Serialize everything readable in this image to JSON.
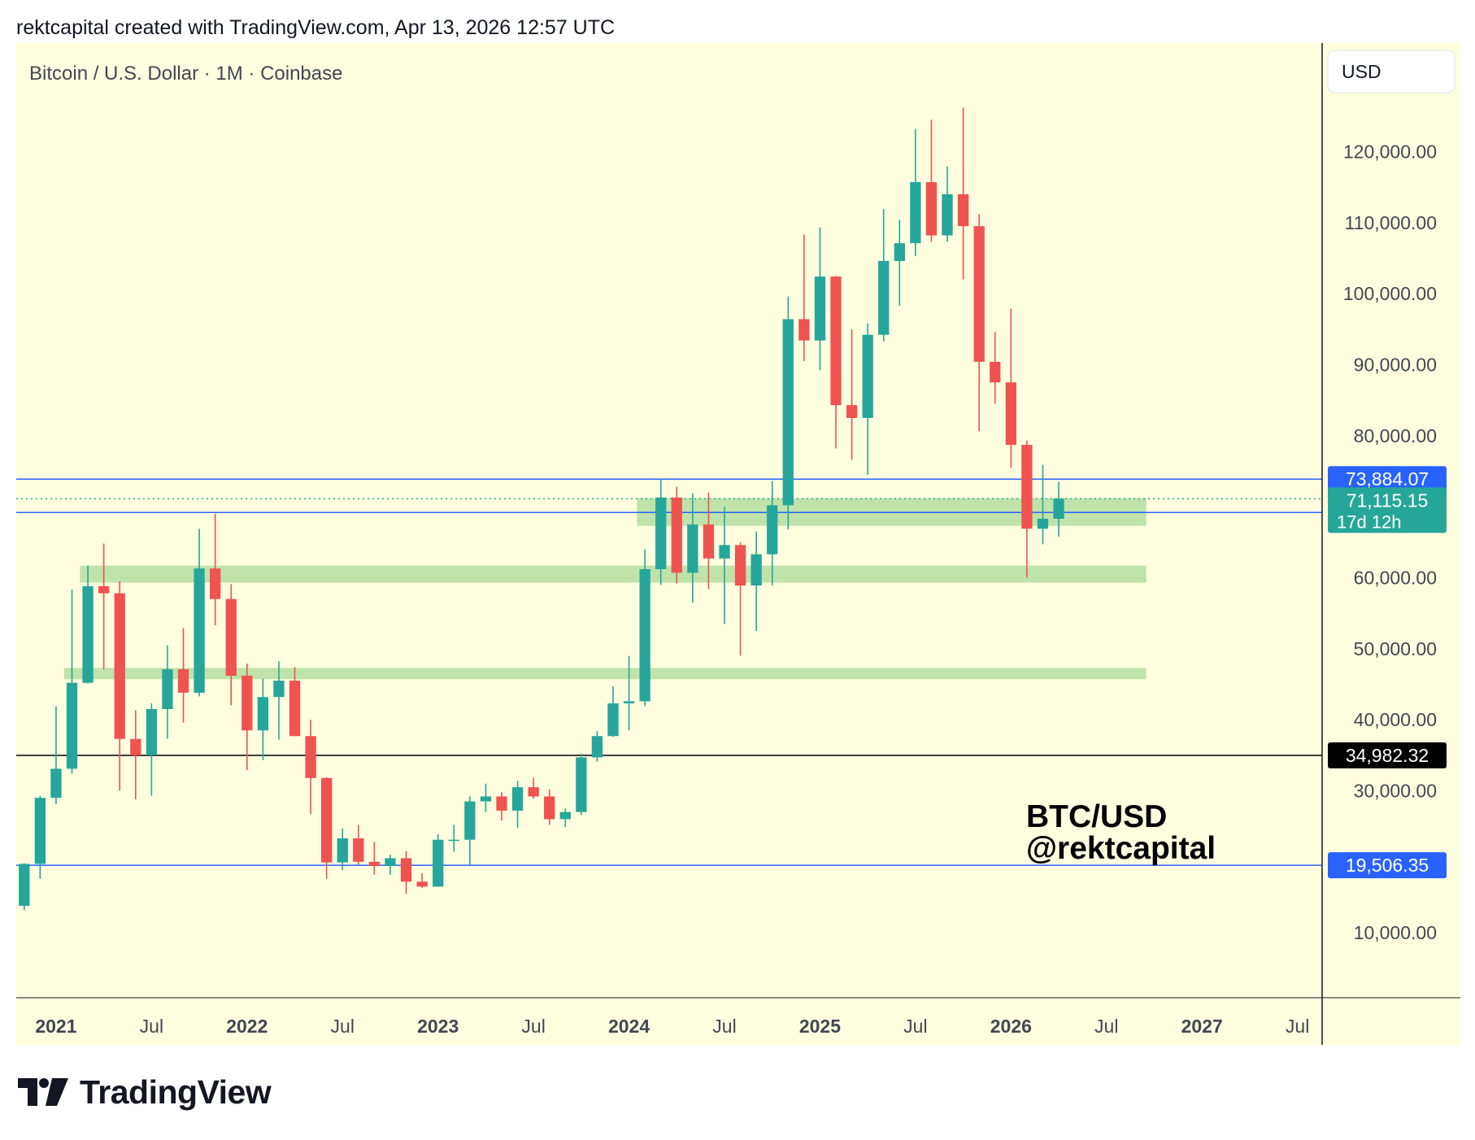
{
  "header": {
    "text": "rektcapital created with TradingView.com, Apr 13, 2026 12:57 UTC"
  },
  "footer": {
    "brand": "TradingView"
  },
  "colors": {
    "background": "#ffffe0",
    "up": "#26a69a",
    "down": "#ef5350",
    "zone": "#b8e0a4",
    "level_line": "#2962ff",
    "black_line": "#000000",
    "grid_text": "#434651"
  },
  "chart_data": {
    "type": "candlestick",
    "title": "Bitcoin / U.S. Dollar · 1M · Coinbase",
    "currency_label": "USD",
    "watermark": [
      "BTC/USD",
      "@rektcapital"
    ],
    "x_ticks": [
      {
        "label": "2021",
        "date": "2021-01",
        "bold": true
      },
      {
        "label": "Jul",
        "date": "2021-07",
        "bold": false
      },
      {
        "label": "2022",
        "date": "2022-01",
        "bold": true
      },
      {
        "label": "Jul",
        "date": "2022-07",
        "bold": false
      },
      {
        "label": "2023",
        "date": "2023-01",
        "bold": true
      },
      {
        "label": "Jul",
        "date": "2023-07",
        "bold": false
      },
      {
        "label": "2024",
        "date": "2024-01",
        "bold": true
      },
      {
        "label": "Jul",
        "date": "2024-07",
        "bold": false
      },
      {
        "label": "2025",
        "date": "2025-01",
        "bold": true
      },
      {
        "label": "Jul",
        "date": "2025-07",
        "bold": false
      },
      {
        "label": "2026",
        "date": "2026-01",
        "bold": true
      },
      {
        "label": "Jul",
        "date": "2026-07",
        "bold": false
      },
      {
        "label": "2027",
        "date": "2027-01",
        "bold": true
      },
      {
        "label": "Jul",
        "date": "2027-07",
        "bold": false
      }
    ],
    "y_ticks": [
      {
        "value": 120000,
        "label": "120,000.00"
      },
      {
        "value": 110000,
        "label": "110,000.00"
      },
      {
        "value": 100000,
        "label": "100,000.00"
      },
      {
        "value": 90000,
        "label": "90,000.00"
      },
      {
        "value": 80000,
        "label": "80,000.00"
      },
      {
        "value": 60000,
        "label": "60,000.00"
      },
      {
        "value": 50000,
        "label": "50,000.00"
      },
      {
        "value": 40000,
        "label": "40,000.00"
      },
      {
        "value": 30000,
        "label": "30,000.00"
      },
      {
        "value": 10000,
        "label": "10,000.00"
      }
    ],
    "x_range": [
      "2020-11",
      "2027-08"
    ],
    "y_range": [
      2000,
      140000
    ],
    "candles": [
      {
        "date": "2020-11",
        "o": 13800,
        "h": 19800,
        "l": 13200,
        "c": 19700
      },
      {
        "date": "2020-12",
        "o": 19700,
        "h": 29300,
        "l": 17600,
        "c": 29000
      },
      {
        "date": "2021-01",
        "o": 29000,
        "h": 41900,
        "l": 28100,
        "c": 33100
      },
      {
        "date": "2021-02",
        "o": 33100,
        "h": 58300,
        "l": 32400,
        "c": 45200
      },
      {
        "date": "2021-03",
        "o": 45200,
        "h": 61700,
        "l": 45100,
        "c": 58800
      },
      {
        "date": "2021-04",
        "o": 58800,
        "h": 64800,
        "l": 47100,
        "c": 57800
      },
      {
        "date": "2021-05",
        "o": 57800,
        "h": 59500,
        "l": 30000,
        "c": 37300
      },
      {
        "date": "2021-06",
        "o": 37300,
        "h": 41300,
        "l": 28800,
        "c": 35000
      },
      {
        "date": "2021-07",
        "o": 35000,
        "h": 42300,
        "l": 29300,
        "c": 41500
      },
      {
        "date": "2021-08",
        "o": 41500,
        "h": 50500,
        "l": 37300,
        "c": 47100
      },
      {
        "date": "2021-09",
        "o": 47100,
        "h": 52900,
        "l": 39600,
        "c": 43800
      },
      {
        "date": "2021-10",
        "o": 43800,
        "h": 66900,
        "l": 43300,
        "c": 61300
      },
      {
        "date": "2021-11",
        "o": 61300,
        "h": 69000,
        "l": 53300,
        "c": 57000
      },
      {
        "date": "2021-12",
        "o": 57000,
        "h": 59100,
        "l": 42000,
        "c": 46200
      },
      {
        "date": "2022-01",
        "o": 46200,
        "h": 47900,
        "l": 32900,
        "c": 38500
      },
      {
        "date": "2022-02",
        "o": 38500,
        "h": 45800,
        "l": 34300,
        "c": 43200
      },
      {
        "date": "2022-03",
        "o": 43200,
        "h": 48200,
        "l": 37200,
        "c": 45500
      },
      {
        "date": "2022-04",
        "o": 45500,
        "h": 47400,
        "l": 37700,
        "c": 37700
      },
      {
        "date": "2022-05",
        "o": 37700,
        "h": 40000,
        "l": 26700,
        "c": 31800
      },
      {
        "date": "2022-06",
        "o": 31800,
        "h": 31900,
        "l": 17600,
        "c": 19900
      },
      {
        "date": "2022-07",
        "o": 19900,
        "h": 24700,
        "l": 18800,
        "c": 23300
      },
      {
        "date": "2022-08",
        "o": 23300,
        "h": 25200,
        "l": 19600,
        "c": 20000
      },
      {
        "date": "2022-09",
        "o": 20000,
        "h": 22800,
        "l": 18200,
        "c": 19400
      },
      {
        "date": "2022-10",
        "o": 19400,
        "h": 21000,
        "l": 18200,
        "c": 20500
      },
      {
        "date": "2022-11",
        "o": 20500,
        "h": 21500,
        "l": 15500,
        "c": 17200
      },
      {
        "date": "2022-12",
        "o": 17200,
        "h": 18400,
        "l": 16300,
        "c": 16500
      },
      {
        "date": "2023-01",
        "o": 16500,
        "h": 23900,
        "l": 16500,
        "c": 23100
      },
      {
        "date": "2023-02",
        "o": 23100,
        "h": 25200,
        "l": 21400,
        "c": 23100
      },
      {
        "date": "2023-03",
        "o": 23100,
        "h": 29200,
        "l": 19600,
        "c": 28500
      },
      {
        "date": "2023-04",
        "o": 28500,
        "h": 31000,
        "l": 27000,
        "c": 29200
      },
      {
        "date": "2023-05",
        "o": 29200,
        "h": 29800,
        "l": 25800,
        "c": 27200
      },
      {
        "date": "2023-06",
        "o": 27200,
        "h": 31400,
        "l": 24800,
        "c": 30500
      },
      {
        "date": "2023-07",
        "o": 30500,
        "h": 31800,
        "l": 28900,
        "c": 29200
      },
      {
        "date": "2023-08",
        "o": 29200,
        "h": 30200,
        "l": 25200,
        "c": 26000
      },
      {
        "date": "2023-09",
        "o": 26000,
        "h": 27500,
        "l": 24900,
        "c": 27000
      },
      {
        "date": "2023-10",
        "o": 27000,
        "h": 35200,
        "l": 26600,
        "c": 34700
      },
      {
        "date": "2023-11",
        "o": 34700,
        "h": 38400,
        "l": 34100,
        "c": 37700
      },
      {
        "date": "2023-12",
        "o": 37700,
        "h": 44700,
        "l": 37600,
        "c": 42300
      },
      {
        "date": "2024-01",
        "o": 42300,
        "h": 49000,
        "l": 38500,
        "c": 42600
      },
      {
        "date": "2024-02",
        "o": 42600,
        "h": 64000,
        "l": 41900,
        "c": 61200
      },
      {
        "date": "2024-03",
        "o": 61200,
        "h": 73800,
        "l": 59000,
        "c": 71300
      },
      {
        "date": "2024-04",
        "o": 71300,
        "h": 72800,
        "l": 59200,
        "c": 60700
      },
      {
        "date": "2024-05",
        "o": 60700,
        "h": 71900,
        "l": 56500,
        "c": 67500
      },
      {
        "date": "2024-06",
        "o": 67500,
        "h": 72000,
        "l": 58400,
        "c": 62700
      },
      {
        "date": "2024-07",
        "o": 62700,
        "h": 70000,
        "l": 53500,
        "c": 64600
      },
      {
        "date": "2024-08",
        "o": 64600,
        "h": 65000,
        "l": 49000,
        "c": 58900
      },
      {
        "date": "2024-09",
        "o": 58900,
        "h": 66500,
        "l": 52500,
        "c": 63300
      },
      {
        "date": "2024-10",
        "o": 63300,
        "h": 73600,
        "l": 58900,
        "c": 70200
      },
      {
        "date": "2024-11",
        "o": 70200,
        "h": 99600,
        "l": 66800,
        "c": 96400
      },
      {
        "date": "2024-12",
        "o": 96400,
        "h": 108300,
        "l": 90500,
        "c": 93400
      },
      {
        "date": "2025-01",
        "o": 93400,
        "h": 109300,
        "l": 89200,
        "c": 102400
      },
      {
        "date": "2025-02",
        "o": 102400,
        "h": 102500,
        "l": 78200,
        "c": 84300
      },
      {
        "date": "2025-03",
        "o": 84300,
        "h": 95000,
        "l": 76600,
        "c": 82500
      },
      {
        "date": "2025-04",
        "o": 82500,
        "h": 95800,
        "l": 74500,
        "c": 94200
      },
      {
        "date": "2025-05",
        "o": 94200,
        "h": 111900,
        "l": 93300,
        "c": 104600
      },
      {
        "date": "2025-06",
        "o": 104600,
        "h": 110400,
        "l": 98300,
        "c": 107100
      },
      {
        "date": "2025-07",
        "o": 107100,
        "h": 123200,
        "l": 105300,
        "c": 115700
      },
      {
        "date": "2025-08",
        "o": 115700,
        "h": 124500,
        "l": 107300,
        "c": 108200
      },
      {
        "date": "2025-09",
        "o": 108200,
        "h": 117900,
        "l": 107300,
        "c": 114000
      },
      {
        "date": "2025-10",
        "o": 114000,
        "h": 126200,
        "l": 102000,
        "c": 109500
      },
      {
        "date": "2025-11",
        "o": 109500,
        "h": 111200,
        "l": 80600,
        "c": 90400
      },
      {
        "date": "2025-12",
        "o": 90400,
        "h": 94600,
        "l": 84500,
        "c": 87500
      },
      {
        "date": "2026-01",
        "o": 87500,
        "h": 97900,
        "l": 75500,
        "c": 78700
      },
      {
        "date": "2026-02",
        "o": 78700,
        "h": 79300,
        "l": 60000,
        "c": 66900
      },
      {
        "date": "2026-03",
        "o": 66900,
        "h": 75900,
        "l": 64700,
        "c": 68300
      },
      {
        "date": "2026-04",
        "o": 68300,
        "h": 73500,
        "l": 65800,
        "c": 71115
      }
    ],
    "zones": [
      {
        "low": 67300,
        "high": 71200,
        "from": "2024-02",
        "to": "2026-09"
      },
      {
        "low": 59300,
        "high": 61700,
        "from": "2021-03",
        "to": "2026-09"
      },
      {
        "low": 45700,
        "high": 47300,
        "from": "2021-02",
        "to": "2026-09"
      }
    ],
    "lines": [
      {
        "value": 73884.07,
        "label": "73,884.07",
        "color": "#2962ff",
        "style": "solid",
        "badge_bg": "#2962ff"
      },
      {
        "value": 69185.75,
        "label": "69,185.75",
        "color": "#2962ff",
        "style": "solid",
        "badge_bg": "#2962ff"
      },
      {
        "value": 34982.32,
        "label": "34,982.32",
        "color": "#000000",
        "style": "solid",
        "badge_bg": "#000000"
      },
      {
        "value": 19506.35,
        "label": "19,506.35",
        "color": "#2962ff",
        "style": "solid",
        "badge_bg": "#2962ff"
      }
    ],
    "last_price": {
      "value": 71115.15,
      "label": "71,115.15",
      "countdown": "17d 12h",
      "badge_bg": "#26a69a"
    }
  }
}
